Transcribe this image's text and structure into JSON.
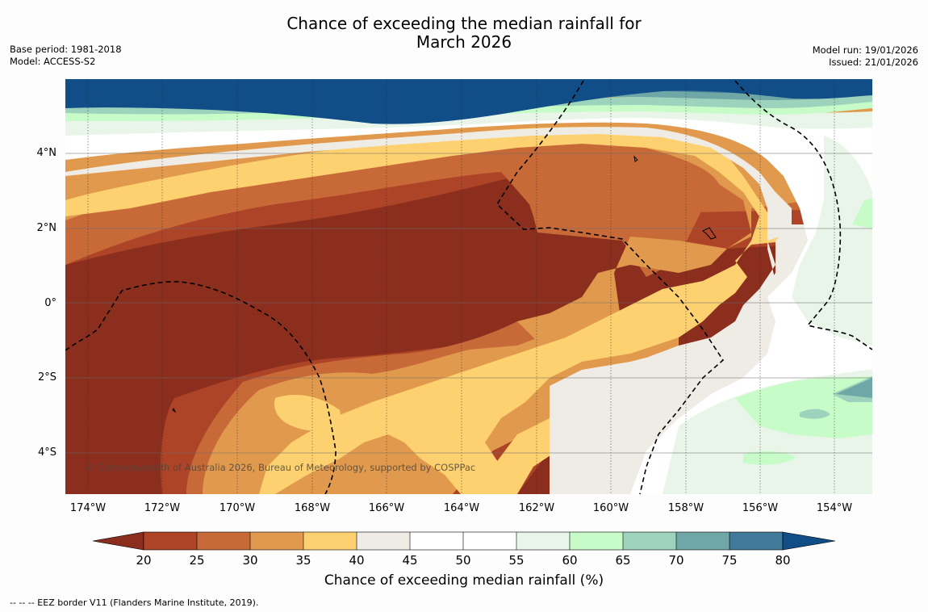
{
  "title": {
    "line1": "Chance of exceeding the median rainfall for",
    "line2": "March 2026"
  },
  "metadata": {
    "base_period": "Base period: 1981-2018",
    "model": "Model: ACCESS-S2",
    "model_run": "Model run: 19/01/2026",
    "issued": "Issued: 21/01/2026"
  },
  "map": {
    "lat_labels": [
      "4°N",
      "2°N",
      "0°",
      "2°S",
      "4°S"
    ],
    "lon_labels": [
      "174°W",
      "172°W",
      "170°W",
      "168°W",
      "166°W",
      "164°W",
      "162°W",
      "160°W",
      "158°W",
      "156°W",
      "154°W"
    ],
    "copyright": "© Commonwealth of Australia 2026, Bureau of Meteorology, supported by COSPPac"
  },
  "colorbar": {
    "ticks": [
      "20",
      "25",
      "30",
      "35",
      "40",
      "45",
      "50",
      "55",
      "60",
      "65",
      "70",
      "75",
      "80"
    ],
    "colors": {
      "below_20": "#8b2e1e",
      "c20_25": "#ad4427",
      "c25_30": "#c86a38",
      "c30_35": "#e19a4d",
      "c35_40": "#fdd170",
      "c40_45": "#efece6",
      "c45_50": "#ffffff",
      "c50_55": "#ffffff",
      "c55_60": "#e9f5e8",
      "c60_65": "#c7fcc9",
      "c65_70": "#9dd2bc",
      "c70_75": "#6fa6a6",
      "c75_80": "#41799a",
      "above_80": "#114e88"
    },
    "label": "Chance of exceeding median rainfall (%)"
  },
  "footer": {
    "legend_text": "--  --  -- EEZ border V11 (Flanders Marine Institute, 2019)."
  }
}
